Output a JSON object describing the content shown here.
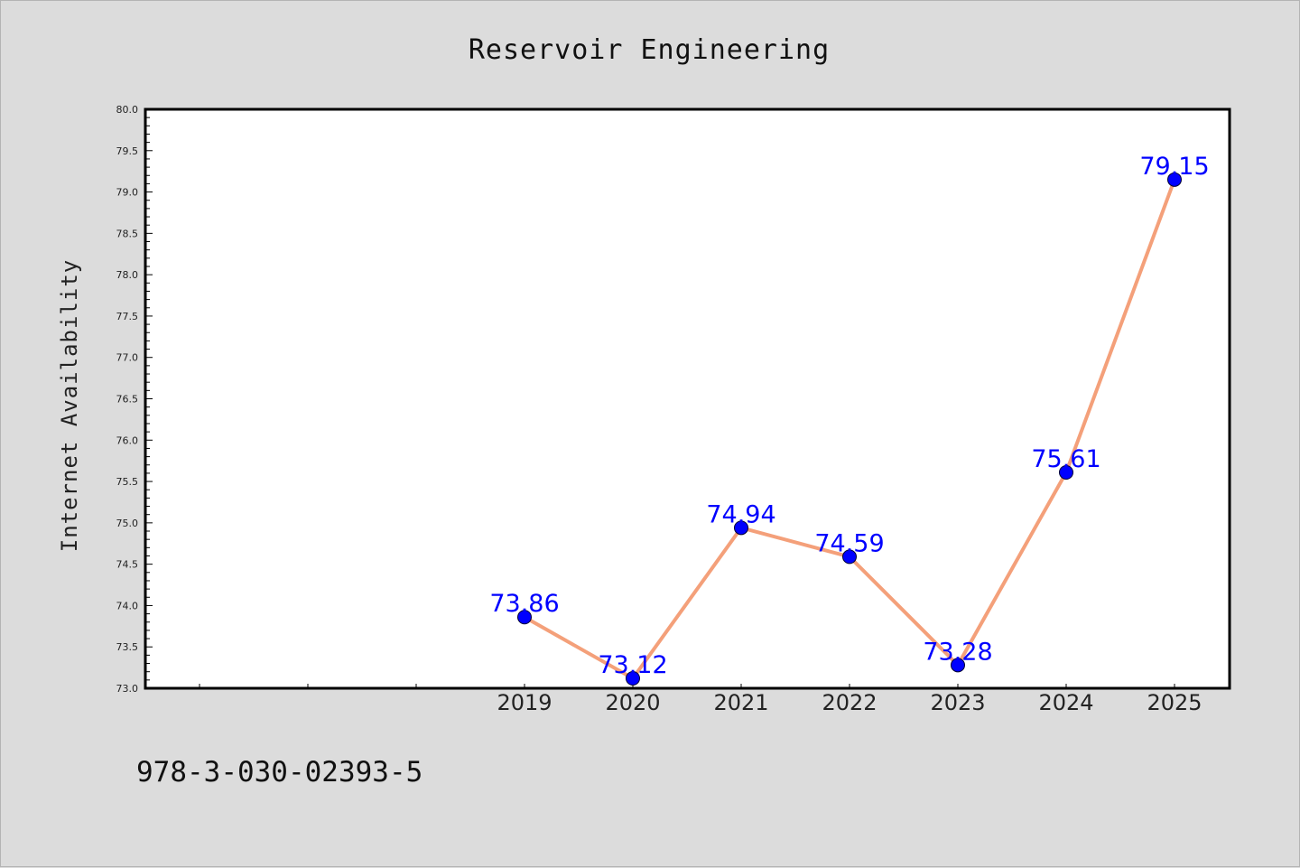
{
  "chart_data": {
    "type": "line",
    "title": "Reservoir Engineering",
    "xlabel": "",
    "ylabel": "Internet Availability",
    "categories": [
      "2019",
      "2020",
      "2021",
      "2022",
      "2023",
      "2024",
      "2025"
    ],
    "series": [
      {
        "values": [
          73.86,
          73.12,
          74.94,
          74.59,
          73.28,
          75.61,
          79.15
        ]
      }
    ],
    "data_labels": [
      "73.86",
      "73.12",
      "74.94",
      "74.59",
      "73.28",
      "75.61",
      "79.15"
    ],
    "ylim": [
      73.0,
      80.0
    ],
    "yticks": [
      "73.0",
      "73.5",
      "74.0",
      "74.5",
      "75.0",
      "75.5",
      "76.0",
      "76.5",
      "77.0",
      "77.5",
      "78.0",
      "78.5",
      "79.0",
      "79.5",
      "80.0"
    ],
    "grid": false,
    "legend": "none",
    "colors": {
      "line": "#f4a07a",
      "marker": "#0000ff",
      "label": "#0000ff",
      "background": "#dcdcdc",
      "plot_area": "#ffffff"
    }
  },
  "footer": {
    "isbn": "978-3-030-02393-5"
  }
}
